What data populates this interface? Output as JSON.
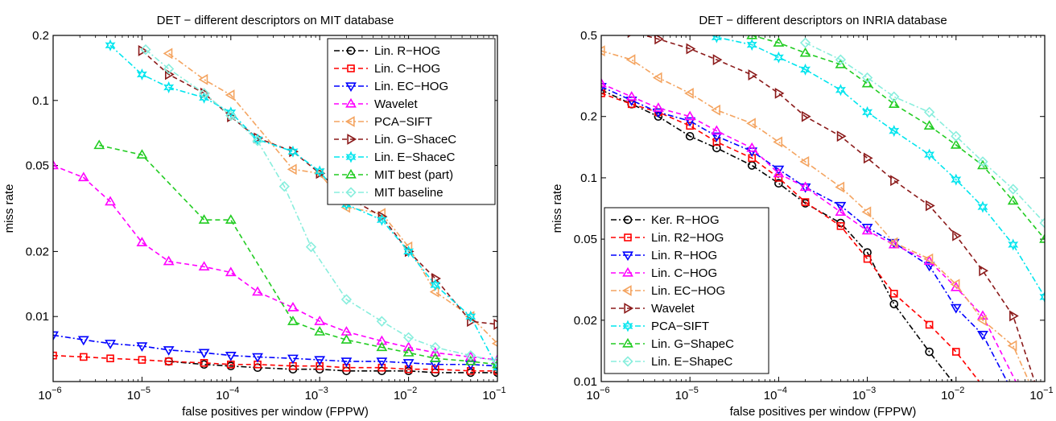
{
  "chart_data": [
    {
      "type": "line",
      "title": "DET − different descriptors on MIT database",
      "xlabel": "false positives per window (FPPW)",
      "ylabel": "miss rate",
      "x_scale": "log",
      "y_scale": "log",
      "xlim": [
        1e-06,
        0.1
      ],
      "ylim": [
        0.005,
        0.2
      ],
      "xticks": [
        1e-06,
        1e-05,
        0.0001,
        0.001,
        0.01,
        0.1
      ],
      "xtick_labels": [
        [
          "10",
          "−6"
        ],
        [
          "10",
          "−5"
        ],
        [
          "10",
          "−4"
        ],
        [
          "10",
          "−3"
        ],
        [
          "10",
          "−2"
        ],
        [
          "10",
          "−1"
        ]
      ],
      "yticks": [
        0.01,
        0.02,
        0.05,
        0.1,
        0.2
      ],
      "ytick_labels": [
        "0.01",
        "0.02",
        "0.05",
        "0.1",
        "0.2"
      ],
      "legend_position": "top-right",
      "series": [
        {
          "name": "Lin. R−HOG",
          "color": "#000000",
          "dash": "7,3,2,3",
          "marker": "circle",
          "x": [
            2e-05,
            5e-05,
            0.0001,
            0.0002,
            0.0005,
            0.001,
            0.002,
            0.005,
            0.01,
            0.02,
            0.05,
            0.1
          ],
          "y": [
            0.0062,
            0.006,
            0.0059,
            0.0058,
            0.0057,
            0.0057,
            0.0056,
            0.0056,
            0.0056,
            0.0055,
            0.0055,
            0.0055
          ]
        },
        {
          "name": "Lin. C−HOG",
          "color": "#ff0000",
          "dash": "6,4",
          "marker": "square",
          "x": [
            1e-06,
            2.2e-06,
            4.4e-06,
            1e-05,
            2e-05,
            5e-05,
            0.0001,
            0.0002,
            0.0005,
            0.001,
            0.002,
            0.005,
            0.01,
            0.02,
            0.05,
            0.1
          ],
          "y": [
            0.0066,
            0.0065,
            0.0064,
            0.0063,
            0.0062,
            0.0061,
            0.006,
            0.006,
            0.0059,
            0.0059,
            0.0058,
            0.0058,
            0.0057,
            0.0057,
            0.0056,
            0.0056
          ]
        },
        {
          "name": "Lin. EC−HOG",
          "color": "#0000ff",
          "dash": "7,3,2,3",
          "marker": "triangle-down",
          "x": [
            1e-06,
            2.2e-06,
            4.4e-06,
            1e-05,
            2e-05,
            5e-05,
            0.0001,
            0.0002,
            0.0005,
            0.001,
            0.002,
            0.005,
            0.01,
            0.02,
            0.05,
            0.1
          ],
          "y": [
            0.0082,
            0.0078,
            0.0075,
            0.0073,
            0.007,
            0.0068,
            0.0066,
            0.0065,
            0.0064,
            0.0063,
            0.0062,
            0.0062,
            0.0061,
            0.006,
            0.006,
            0.0059
          ]
        },
        {
          "name": "Wavelet",
          "color": "#ff00ff",
          "dash": "6,4",
          "marker": "triangle-up",
          "x": [
            1e-06,
            2.2e-06,
            4.4e-06,
            1e-05,
            2e-05,
            5e-05,
            0.0001,
            0.0002,
            0.0005,
            0.001,
            0.002,
            0.005,
            0.01,
            0.02,
            0.05,
            0.1
          ],
          "y": [
            0.05,
            0.044,
            0.034,
            0.022,
            0.018,
            0.017,
            0.016,
            0.013,
            0.011,
            0.0095,
            0.0085,
            0.0077,
            0.0072,
            0.0068,
            0.0065,
            0.0063
          ]
        },
        {
          "name": "PCA−SIFT",
          "color": "#f4a460",
          "dash": "7,3,2,3",
          "marker": "triangle-left",
          "x": [
            2e-05,
            5e-05,
            0.0001,
            0.0005,
            0.001,
            0.002,
            0.005,
            0.01,
            0.02,
            0.05,
            0.1
          ],
          "y": [
            0.165,
            0.125,
            0.106,
            0.048,
            0.046,
            0.032,
            0.03,
            0.021,
            0.013,
            0.01,
            0.0075
          ]
        },
        {
          "name": "Lin. G−ShaceC",
          "color": "#8b1a1a",
          "dash": "6,4",
          "marker": "triangle-right",
          "x": [
            1e-05,
            2e-05,
            5e-05,
            0.0001,
            0.0002,
            0.0005,
            0.001,
            0.002,
            0.005,
            0.01,
            0.02,
            0.05,
            0.1
          ],
          "y": [
            0.17,
            0.132,
            0.108,
            0.084,
            0.067,
            0.058,
            0.046,
            0.036,
            0.029,
            0.02,
            0.015,
            0.0095,
            0.0092
          ]
        },
        {
          "name": "Lin. E−ShaceC",
          "color": "#00e5ee",
          "dash": "7,3,2,3",
          "marker": "star",
          "x": [
            4.4e-06,
            1e-05,
            2e-05,
            5e-05,
            0.0001,
            0.0002,
            0.0005,
            0.001,
            0.002,
            0.005,
            0.01,
            0.02,
            0.05,
            0.1
          ],
          "y": [
            0.18,
            0.132,
            0.115,
            0.103,
            0.088,
            0.066,
            0.058,
            0.047,
            0.033,
            0.028,
            0.02,
            0.014,
            0.01,
            0.0058
          ]
        },
        {
          "name": "MIT best (part)",
          "color": "#22cc22",
          "dash": "6,4",
          "marker": "triangle-up",
          "x": [
            3.3e-06,
            1e-05,
            5e-05,
            0.0001,
            0.0005,
            0.001,
            0.002,
            0.005,
            0.01,
            0.02,
            0.05,
            0.1
          ],
          "y": [
            0.062,
            0.056,
            0.028,
            0.028,
            0.0095,
            0.0085,
            0.0078,
            0.0072,
            0.0068,
            0.0064,
            0.0062,
            0.006
          ]
        },
        {
          "name": "MIT baseline",
          "color": "#88eedd",
          "dash": "7,3,2,3",
          "marker": "diamond",
          "x": [
            1.1e-05,
            2e-05,
            5e-05,
            0.0001,
            0.0002,
            0.0004,
            0.0008,
            0.002,
            0.005,
            0.01,
            0.02,
            0.05,
            0.1
          ],
          "y": [
            0.172,
            0.14,
            0.108,
            0.085,
            0.065,
            0.04,
            0.021,
            0.012,
            0.0095,
            0.008,
            0.0072,
            0.0066,
            0.0062
          ]
        }
      ]
    },
    {
      "type": "line",
      "title": "DET − different descriptors on INRIA database",
      "xlabel": "false positives per window (FPPW)",
      "ylabel": "miss rate",
      "x_scale": "log",
      "y_scale": "log",
      "xlim": [
        1e-06,
        0.1
      ],
      "ylim": [
        0.01,
        0.5
      ],
      "xticks": [
        1e-06,
        1e-05,
        0.0001,
        0.001,
        0.01,
        0.1
      ],
      "xtick_labels": [
        [
          "10",
          "−6"
        ],
        [
          "10",
          "−5"
        ],
        [
          "10",
          "−4"
        ],
        [
          "10",
          "−3"
        ],
        [
          "10",
          "−2"
        ],
        [
          "10",
          "−1"
        ]
      ],
      "yticks": [
        0.01,
        0.02,
        0.05,
        0.1,
        0.2,
        0.5
      ],
      "ytick_labels": [
        "0.01",
        "0.02",
        "0.05",
        "0.1",
        "0.2",
        "0.5"
      ],
      "legend_position": "bottom-left",
      "series": [
        {
          "name": "Ker. R−HOG",
          "color": "#000000",
          "dash": "7,3,2,3",
          "marker": "circle",
          "x": [
            1e-06,
            2.2e-06,
            4.4e-06,
            1e-05,
            2e-05,
            5e-05,
            0.0001,
            0.0002,
            0.0005,
            0.001,
            0.002,
            0.005,
            0.01
          ],
          "y": [
            0.27,
            0.23,
            0.2,
            0.16,
            0.14,
            0.115,
            0.094,
            0.075,
            0.06,
            0.043,
            0.024,
            0.014,
            0.0095
          ]
        },
        {
          "name": "Lin. R2−HOG",
          "color": "#ff0000",
          "dash": "6,4",
          "marker": "square",
          "x": [
            1e-06,
            2.2e-06,
            4.4e-06,
            1e-05,
            2e-05,
            5e-05,
            0.0001,
            0.0002,
            0.0005,
            0.001,
            0.002,
            0.005,
            0.01,
            0.02
          ],
          "y": [
            0.26,
            0.23,
            0.21,
            0.18,
            0.15,
            0.125,
            0.1,
            0.076,
            0.058,
            0.04,
            0.027,
            0.019,
            0.014,
            0.0095
          ]
        },
        {
          "name": "Lin. R−HOG",
          "color": "#0000ff",
          "dash": "7,3,2,3",
          "marker": "triangle-down",
          "x": [
            1e-06,
            2.2e-06,
            4.4e-06,
            1e-05,
            2e-05,
            5e-05,
            0.0001,
            0.0002,
            0.0005,
            0.001,
            0.002,
            0.005,
            0.01,
            0.02,
            0.04
          ],
          "y": [
            0.28,
            0.24,
            0.21,
            0.19,
            0.16,
            0.135,
            0.11,
            0.09,
            0.073,
            0.057,
            0.048,
            0.037,
            0.023,
            0.017,
            0.0095
          ]
        },
        {
          "name": "Lin. C−HOG",
          "color": "#ff00ff",
          "dash": "6,4",
          "marker": "triangle-up",
          "x": [
            1e-06,
            2.2e-06,
            4.4e-06,
            1e-05,
            2e-05,
            5e-05,
            0.0001,
            0.0002,
            0.0005,
            0.001,
            0.002,
            0.005,
            0.01,
            0.02,
            0.05
          ],
          "y": [
            0.29,
            0.25,
            0.22,
            0.2,
            0.17,
            0.14,
            0.105,
            0.09,
            0.068,
            0.055,
            0.047,
            0.039,
            0.029,
            0.021,
            0.0095
          ]
        },
        {
          "name": "Lin. EC−HOG",
          "color": "#f4a460",
          "dash": "7,3,2,3",
          "marker": "triangle-left",
          "x": [
            1e-06,
            2.2e-06,
            4.4e-06,
            1e-05,
            2e-05,
            5e-05,
            0.0001,
            0.0002,
            0.0005,
            0.001,
            0.002,
            0.005,
            0.01,
            0.02,
            0.044,
            0.07
          ],
          "y": [
            0.42,
            0.38,
            0.31,
            0.26,
            0.215,
            0.185,
            0.15,
            0.12,
            0.09,
            0.068,
            0.048,
            0.04,
            0.03,
            0.02,
            0.015,
            0.0095
          ]
        },
        {
          "name": "Wavelet",
          "color": "#8b1a1a",
          "dash": "6,4",
          "marker": "triangle-right",
          "x": [
            2.2e-06,
            4.4e-06,
            1e-05,
            2e-05,
            5e-05,
            0.0001,
            0.0002,
            0.0005,
            0.001,
            0.002,
            0.005,
            0.01,
            0.02,
            0.044,
            0.08
          ],
          "y": [
            0.52,
            0.48,
            0.43,
            0.38,
            0.32,
            0.26,
            0.2,
            0.16,
            0.125,
            0.097,
            0.073,
            0.052,
            0.035,
            0.021,
            0.0095
          ]
        },
        {
          "name": "PCA−SIFT",
          "color": "#00e5ee",
          "dash": "7,3,2,3",
          "marker": "star",
          "x": [
            1e-05,
            2e-05,
            5e-05,
            0.0001,
            0.0002,
            0.0005,
            0.001,
            0.002,
            0.005,
            0.01,
            0.02,
            0.044,
            0.1
          ],
          "y": [
            0.55,
            0.49,
            0.45,
            0.39,
            0.34,
            0.27,
            0.21,
            0.17,
            0.13,
            0.098,
            0.072,
            0.047,
            0.026
          ]
        },
        {
          "name": "Lin. G−ShapeC",
          "color": "#22cc22",
          "dash": "6,4",
          "marker": "triangle-up",
          "x": [
            5e-05,
            0.0001,
            0.0002,
            0.0005,
            0.001,
            0.002,
            0.005,
            0.01,
            0.02,
            0.044,
            0.1
          ],
          "y": [
            0.5,
            0.46,
            0.41,
            0.36,
            0.29,
            0.23,
            0.18,
            0.145,
            0.115,
            0.077,
            0.05
          ]
        },
        {
          "name": "Lin. E−ShapeC",
          "color": "#88eedd",
          "dash": "7,3,2,3",
          "marker": "diamond",
          "x": [
            0.0002,
            0.0005,
            0.001,
            0.002,
            0.005,
            0.01,
            0.02,
            0.044,
            0.1
          ],
          "y": [
            0.46,
            0.38,
            0.31,
            0.25,
            0.21,
            0.16,
            0.12,
            0.088,
            0.06
          ]
        }
      ]
    }
  ]
}
